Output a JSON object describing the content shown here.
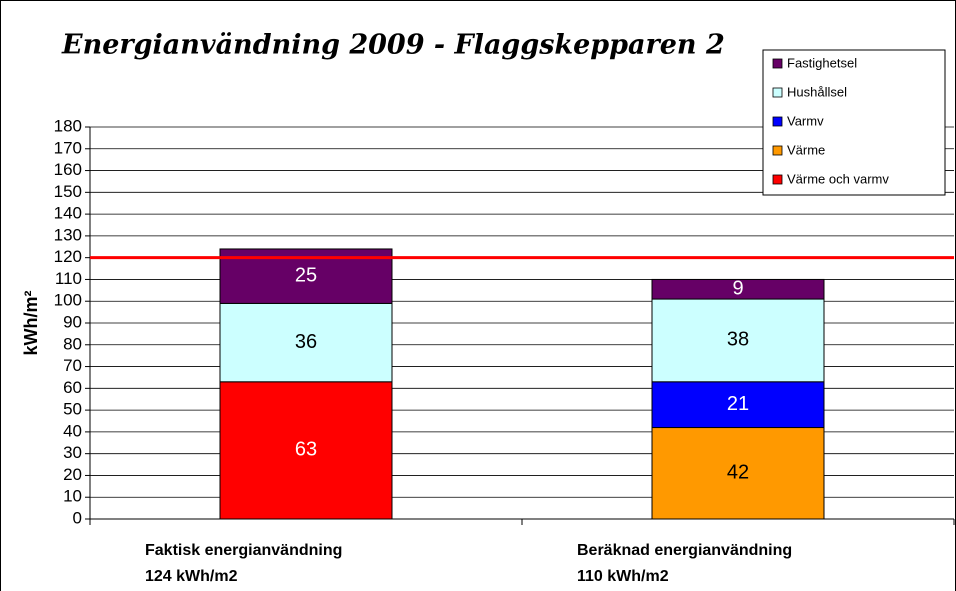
{
  "chart_data": {
    "type": "stacked_bar",
    "title": "Energianvändning 2009 - Flaggskepparen 2",
    "y_label": "kWh/m²",
    "categories": [
      [
        "Faktisk energianvändning",
        "124 kWh/m2"
      ],
      [
        "Beräknad energianvändning",
        "110 kWh/m2"
      ]
    ],
    "series": [
      {
        "name": "Värme och varmv",
        "color": "#ff0000",
        "values": [
          63,
          null
        ]
      },
      {
        "name": "Värme",
        "color": "#ff9900",
        "values": [
          null,
          42
        ]
      },
      {
        "name": "Varmv",
        "color": "#0000ff",
        "values": [
          null,
          21
        ]
      },
      {
        "name": "Hushållsel",
        "color": "#ccffff",
        "values": [
          36,
          38
        ]
      },
      {
        "name": "Fastighetsel",
        "color": "#660066",
        "values": [
          25,
          9
        ]
      }
    ],
    "reference_line": {
      "value": 120,
      "color": "#ff0000"
    },
    "ylim": [
      0,
      180
    ],
    "yticks": [
      0,
      10,
      20,
      30,
      40,
      50,
      60,
      70,
      80,
      90,
      100,
      110,
      120,
      130,
      140,
      150,
      160,
      170,
      180
    ],
    "grid": true,
    "legend": "top-right"
  }
}
